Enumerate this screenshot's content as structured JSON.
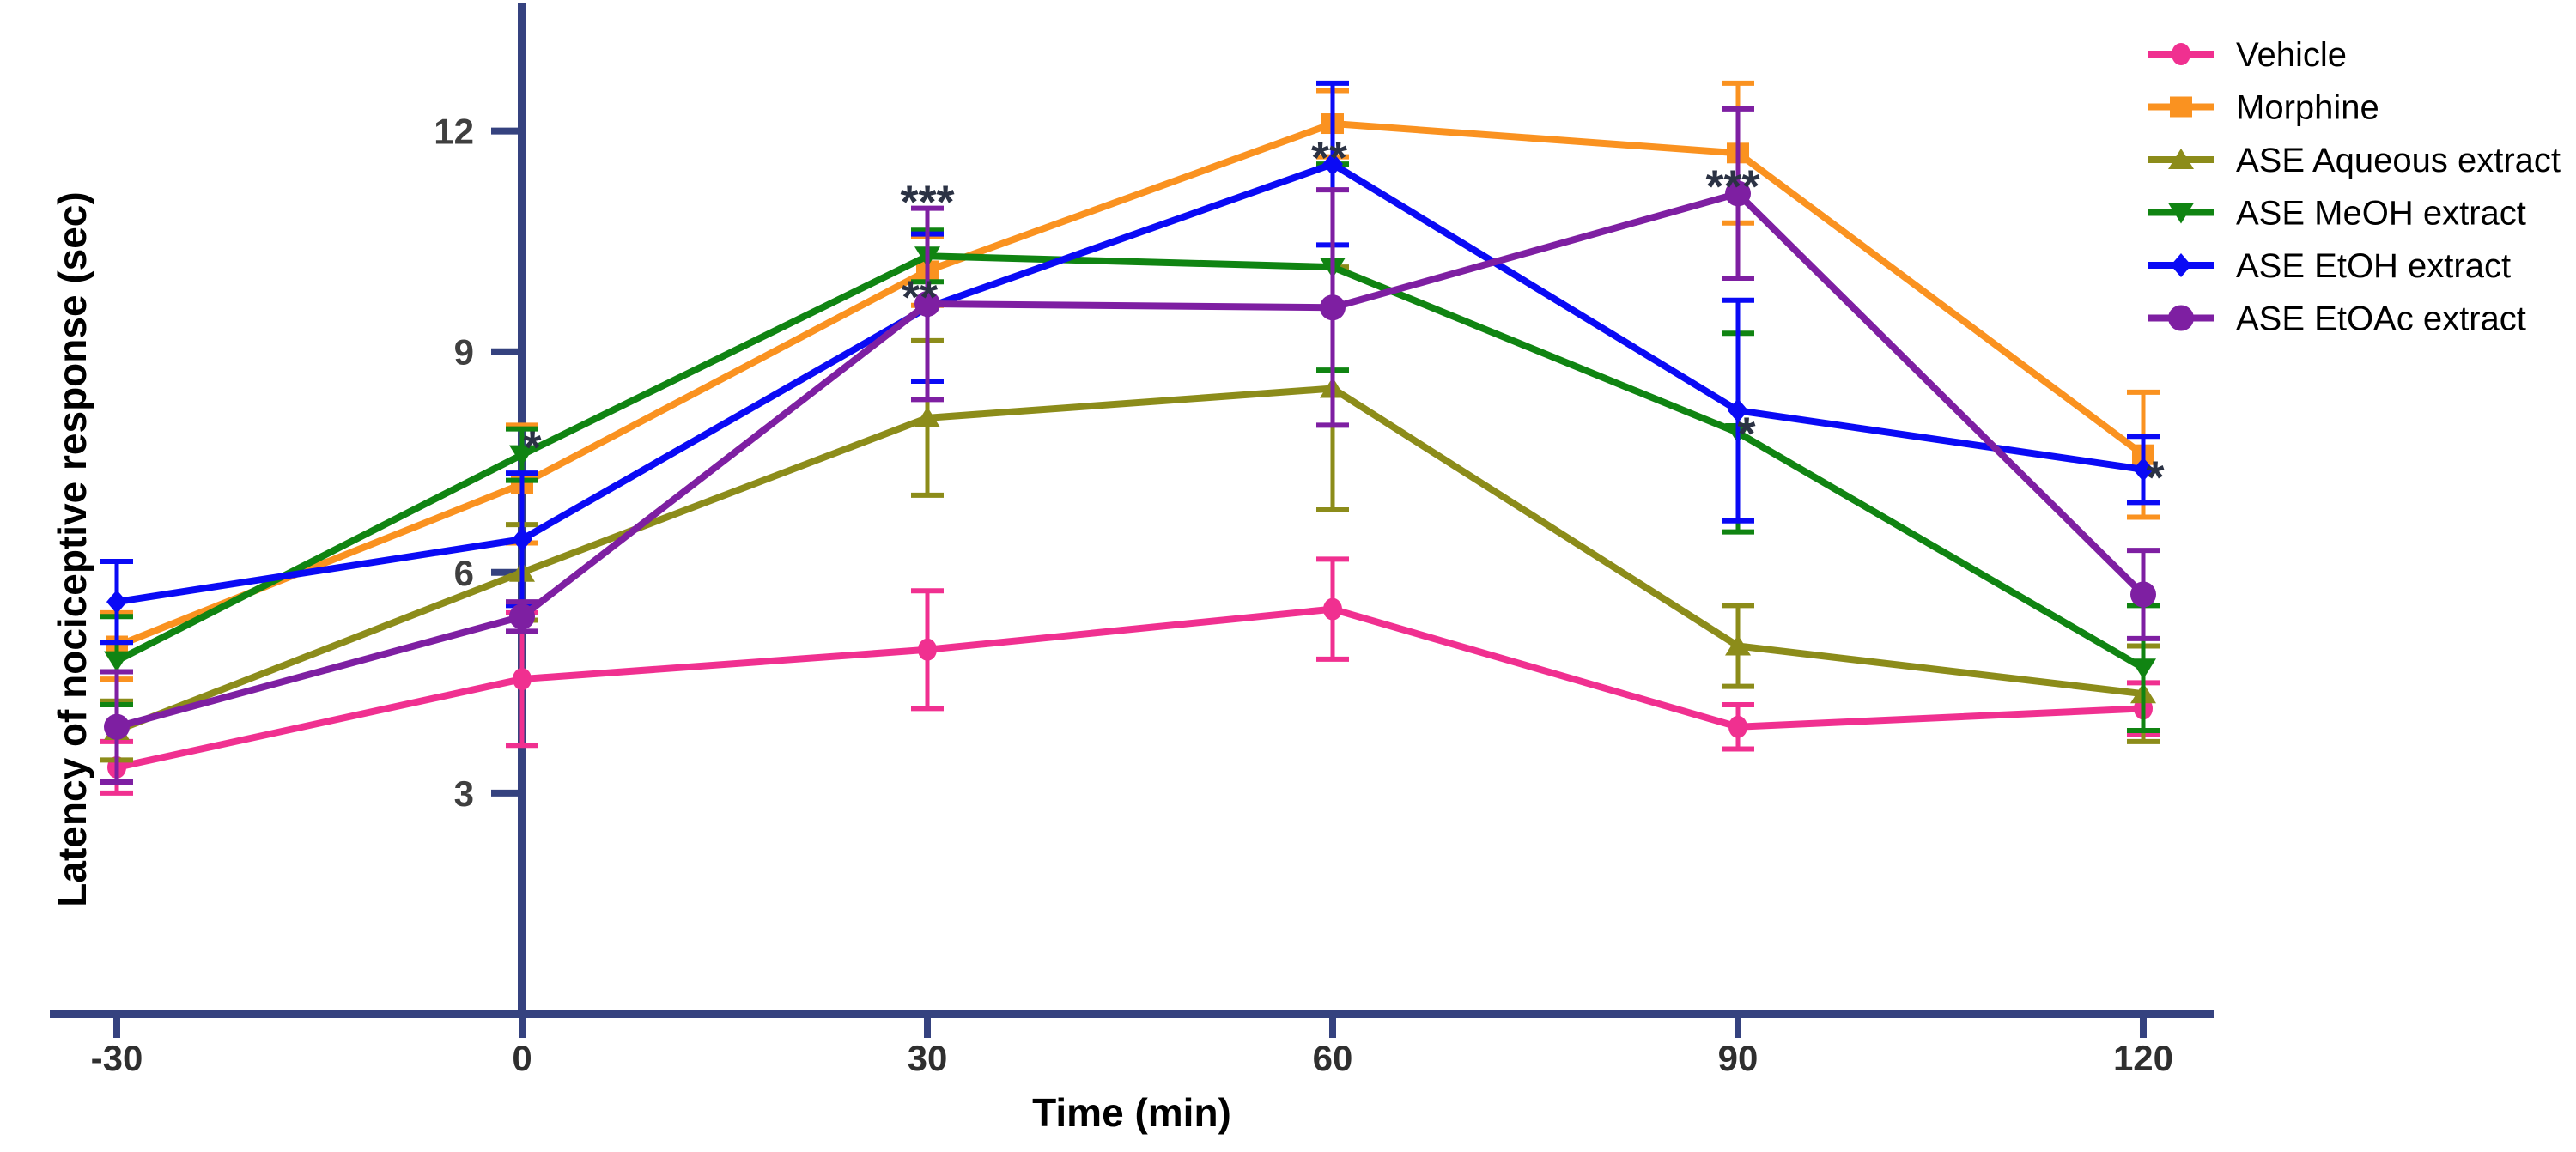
{
  "figure": {
    "background": "#ffffff"
  },
  "chart_data": {
    "type": "line",
    "title": "",
    "xlabel": "Time (min)",
    "ylabel": "Latency of nociceptive response (sec)",
    "x": [
      -30,
      0,
      30,
      60,
      90,
      120
    ],
    "x_tick_labels": [
      "-30",
      "0",
      "30",
      "60",
      "90",
      "120"
    ],
    "y_ticks": [
      3,
      6,
      9,
      12
    ],
    "ylim": [
      0,
      13.7
    ],
    "xlim": [
      -35,
      125
    ],
    "grid": false,
    "legend_position": "top-right",
    "error_bars": "sem, capped, both directions",
    "style": {
      "axis_color": "#35427f",
      "x_tick_label_color": "#2f2f2f",
      "y_tick_label_color": "#3f3f3f",
      "annotation_color": "#2b3244",
      "legend_text_color": "#000000"
    },
    "series": [
      {
        "name": "Vehicle",
        "color": "#f03090",
        "marker": "circle-small",
        "values": [
          3.35,
          4.55,
          4.95,
          5.5,
          3.9,
          4.15
        ],
        "errors": [
          0.35,
          0.9,
          0.8,
          0.68,
          0.3,
          0.35
        ]
      },
      {
        "name": "Morphine",
        "color": "#fa9220",
        "marker": "square",
        "values": [
          5.0,
          7.2,
          10.1,
          12.1,
          11.7,
          7.6
        ],
        "errors": [
          0.45,
          0.8,
          0.47,
          0.45,
          0.95,
          0.85
        ]
      },
      {
        "name": "ASE Aqueous extract",
        "color": "#8c8c1a",
        "marker": "triangle-up",
        "values": [
          3.85,
          6.0,
          8.1,
          8.5,
          5.0,
          4.35
        ],
        "errors": [
          0.4,
          0.65,
          1.05,
          1.65,
          0.55,
          0.65
        ]
      },
      {
        "name": "ASE MeOH extract",
        "color": "#108412",
        "marker": "triangle-down",
        "values": [
          4.8,
          7.6,
          10.3,
          10.15,
          7.9,
          4.7
        ],
        "errors": [
          0.6,
          0.35,
          0.35,
          1.4,
          1.35,
          0.85
        ]
      },
      {
        "name": "ASE EtOH extract",
        "color": "#0a0af5",
        "marker": "diamond",
        "values": [
          5.6,
          6.45,
          9.6,
          11.55,
          8.2,
          7.4
        ],
        "errors": [
          0.55,
          0.9,
          1.0,
          1.1,
          1.5,
          0.45
        ]
      },
      {
        "name": "ASE EtOAc extract",
        "color": "#7e1fa2",
        "marker": "circle-large",
        "values": [
          3.9,
          5.4,
          9.65,
          9.6,
          11.15,
          5.7
        ],
        "errors": [
          0.75,
          0.2,
          1.3,
          1.6,
          1.15,
          0.6
        ]
      }
    ],
    "annotations": [
      {
        "text": "*",
        "time": 0,
        "value": 7.87,
        "dx": 12
      },
      {
        "text": "***",
        "time": 30,
        "value": 11.21,
        "dx": 0
      },
      {
        "text": "**",
        "time": 30,
        "value": 9.91,
        "dx": -9
      },
      {
        "text": "**",
        "time": 60,
        "value": 11.81,
        "dx": -4
      },
      {
        "text": "***",
        "time": 90,
        "value": 11.42,
        "dx": -6
      },
      {
        "text": "*",
        "time": 90,
        "value": 8.06,
        "dx": 10
      },
      {
        "text": "*",
        "time": 120,
        "value": 7.46,
        "dx": 14
      }
    ]
  }
}
